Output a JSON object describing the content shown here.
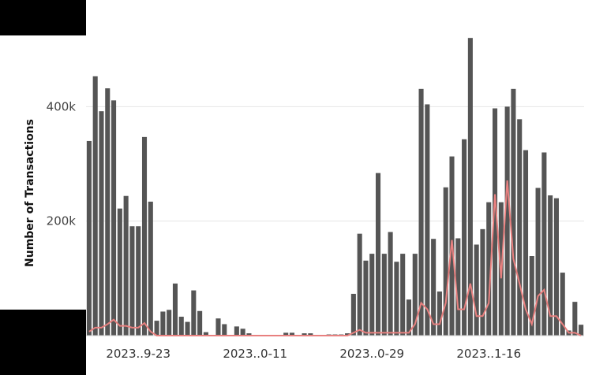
{
  "chart_data": {
    "type": "bar",
    "title": "",
    "xlabel": "",
    "ylabel": "Number of Transactions",
    "ylim": [
      0,
      545000
    ],
    "y_ticks": [
      {
        "value": 200000,
        "label": "200k"
      },
      {
        "value": 400000,
        "label": "400k"
      }
    ],
    "x_tick_labels": [
      {
        "index": 8,
        "label": "2023..9-23"
      },
      {
        "index": 27,
        "label": "2023..0-11"
      },
      {
        "index": 46,
        "label": "2023..0-29"
      },
      {
        "index": 65,
        "label": "2023..1-16"
      }
    ],
    "grid": "horizontal",
    "series": [
      {
        "type": "bar",
        "color": "#555555",
        "values": [
          340000,
          453000,
          392000,
          432000,
          411000,
          222000,
          244000,
          191000,
          191000,
          347000,
          234000,
          26000,
          42000,
          45000,
          91000,
          33000,
          24000,
          79000,
          43000,
          6000,
          0,
          30000,
          20000,
          0,
          16000,
          12000,
          4000,
          0,
          0,
          0,
          0,
          0,
          5000,
          5000,
          0,
          4000,
          4000,
          0,
          0,
          2000,
          2000,
          2000,
          4000,
          73000,
          178000,
          131000,
          143000,
          284000,
          143000,
          181000,
          129000,
          143000,
          63000,
          143000,
          431000,
          404000,
          169000,
          77000,
          259000,
          313000,
          170000,
          343000,
          520000,
          159000,
          186000,
          233000,
          397000,
          233000,
          400000,
          431000,
          378000,
          324000,
          139000,
          258000,
          320000,
          245000,
          240000,
          110000,
          9000,
          59000,
          19000
        ]
      },
      {
        "type": "line",
        "color": "#e8807f",
        "values": [
          7000,
          14000,
          14000,
          20000,
          28000,
          17000,
          17000,
          14000,
          14000,
          22000,
          7000,
          0,
          0,
          0,
          0,
          0,
          0,
          0,
          0,
          0,
          0,
          0,
          0,
          0,
          0,
          0,
          0,
          0,
          0,
          0,
          0,
          0,
          0,
          0,
          0,
          0,
          0,
          0,
          0,
          0,
          0,
          0,
          0,
          5000,
          10000,
          5000,
          5000,
          5000,
          5000,
          5000,
          5000,
          5000,
          5000,
          20000,
          57000,
          46000,
          20000,
          20000,
          57000,
          167000,
          46000,
          46000,
          91000,
          34000,
          34000,
          57000,
          247000,
          100000,
          271000,
          134000,
          91000,
          46000,
          20000,
          69000,
          80000,
          34000,
          34000,
          20000,
          5000,
          5000,
          0
        ]
      }
    ]
  }
}
